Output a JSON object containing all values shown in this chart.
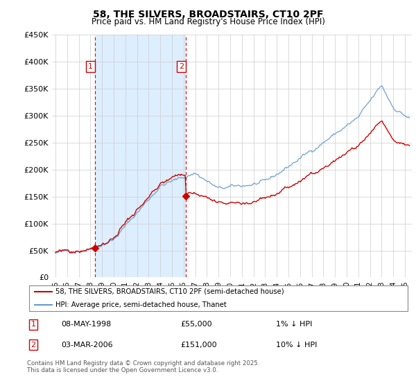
{
  "title": "58, THE SILVERS, BROADSTAIRS, CT10 2PF",
  "subtitle": "Price paid vs. HM Land Registry's House Price Index (HPI)",
  "legend_line1": "58, THE SILVERS, BROADSTAIRS, CT10 2PF (semi-detached house)",
  "legend_line2": "HPI: Average price, semi-detached house, Thanet",
  "footer": "Contains HM Land Registry data © Crown copyright and database right 2025.\nThis data is licensed under the Open Government Licence v3.0.",
  "transaction1_date": "08-MAY-1998",
  "transaction1_price": "£55,000",
  "transaction1_hpi": "1% ↓ HPI",
  "transaction2_date": "03-MAR-2006",
  "transaction2_price": "£151,000",
  "transaction2_hpi": "10% ↓ HPI",
  "ylabel_ticks": [
    "£0",
    "£50K",
    "£100K",
    "£150K",
    "£200K",
    "£250K",
    "£300K",
    "£350K",
    "£400K",
    "£450K"
  ],
  "ytick_values": [
    0,
    50000,
    100000,
    150000,
    200000,
    250000,
    300000,
    350000,
    400000,
    450000
  ],
  "red_color": "#cc0000",
  "blue_color": "#6699cc",
  "shade_color": "#ddeeff",
  "grid_color": "#cccccc",
  "background_color": "#ffffff",
  "t1_year": 1998.37,
  "t2_year": 2006.17,
  "t1_price": 55000,
  "t2_price": 151000,
  "years_start": 1995.0,
  "years_end": 2025.4,
  "xlim_left": 1994.7,
  "xlim_right": 2025.6,
  "ylim_top": 450000,
  "seed_hpi": 42,
  "seed_red": 77
}
